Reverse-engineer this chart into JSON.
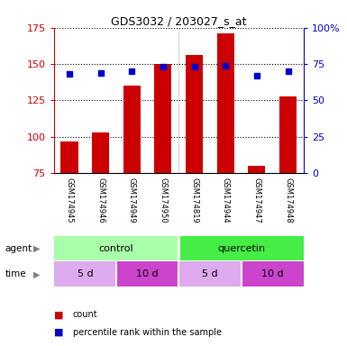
{
  "title": "GDS3032 / 203027_s_at",
  "samples": [
    "GSM174945",
    "GSM174946",
    "GSM174949",
    "GSM174950",
    "GSM174819",
    "GSM174944",
    "GSM174947",
    "GSM174948"
  ],
  "counts": [
    97,
    103,
    135,
    150,
    156,
    171,
    80,
    128
  ],
  "percentiles": [
    68,
    69,
    70,
    73,
    73,
    74,
    67,
    70
  ],
  "ylim_left": [
    75,
    175
  ],
  "ylim_right": [
    0,
    100
  ],
  "yticks_left": [
    75,
    100,
    125,
    150,
    175
  ],
  "yticks_right": [
    0,
    25,
    50,
    75,
    100
  ],
  "bar_color": "#cc0000",
  "dot_color": "#0000cc",
  "bar_width": 0.55,
  "grid_color": "black",
  "left_tick_color": "#cc0000",
  "right_tick_color": "#0000cc",
  "agent_control_color": "#aaffaa",
  "agent_quercetin_color": "#44ee44",
  "time_5d_color": "#ddaaee",
  "time_10d_color": "#cc44cc",
  "gsm_bg_color": "#cccccc",
  "white": "#ffffff"
}
